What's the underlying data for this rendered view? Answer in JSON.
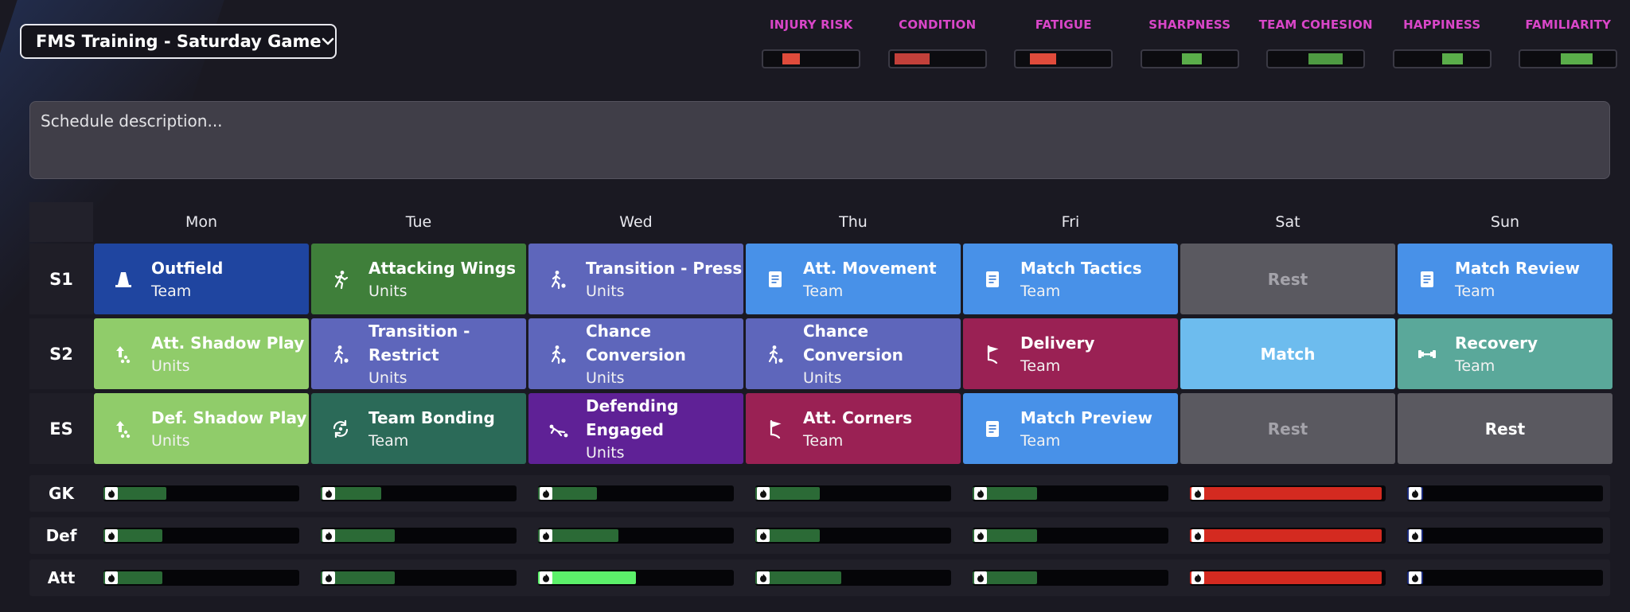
{
  "schedule": {
    "title": "FMS Training - Saturday Game",
    "icon": "chevron-down-icon"
  },
  "metrics": [
    {
      "label": "INJURY RISK",
      "color": "#e04b3b",
      "start": 0.2,
      "end": 0.38
    },
    {
      "label": "CONDITION",
      "color": "#c2403a",
      "start": 0.05,
      "end": 0.42
    },
    {
      "label": "FATIGUE",
      "color": "#e04b3b",
      "start": 0.15,
      "end": 0.42
    },
    {
      "label": "SHARPNESS",
      "color": "#5aad4a",
      "start": 0.42,
      "end": 0.63
    },
    {
      "label": "TEAM COHESION",
      "color": "#4e9a42",
      "start": 0.42,
      "end": 0.78
    },
    {
      "label": "HAPPINESS",
      "color": "#5aad4a",
      "start": 0.5,
      "end": 0.72
    },
    {
      "label": "FAMILIARITY",
      "color": "#5aad4a",
      "start": 0.42,
      "end": 0.76
    }
  ],
  "description": {
    "placeholder": "Schedule description..."
  },
  "days": [
    "Mon",
    "Tue",
    "Wed",
    "Thu",
    "Fri",
    "Sat",
    "Sun"
  ],
  "session_rows": [
    "S1",
    "S2",
    "ES"
  ],
  "sessions": [
    [
      {
        "name": "Outfield",
        "sub": "Team",
        "icon": "cone-icon",
        "color": "#1f45a0"
      },
      {
        "name": "Attacking Wings",
        "sub": "Units",
        "icon": "running-player-icon",
        "color": "#3f7f3a"
      },
      {
        "name": "Transition - Press",
        "sub": "Units",
        "icon": "player-ball-icon",
        "color": "#5e66bb"
      },
      {
        "name": "Att. Movement",
        "sub": "Team",
        "icon": "clipboard-icon",
        "color": "#4891e8"
      },
      {
        "name": "Match Tactics",
        "sub": "Team",
        "icon": "clipboard-icon",
        "color": "#4891e8"
      },
      {
        "name": "Rest",
        "sub": "",
        "icon": "",
        "color": "#5a5960",
        "dim": true
      },
      {
        "name": "Match Review",
        "sub": "Team",
        "icon": "clipboard-icon",
        "color": "#4891e8"
      }
    ],
    [
      {
        "name": "Att. Shadow Play",
        "sub": "Units",
        "icon": "arrow-up-dots-icon",
        "color": "#90cc6a"
      },
      {
        "name": "Transition - Restrict",
        "sub": "Units",
        "icon": "player-ball-icon",
        "color": "#5e66bb"
      },
      {
        "name": "Chance Conversion",
        "sub": "Units",
        "icon": "player-ball-icon",
        "color": "#5e66bb"
      },
      {
        "name": "Chance Conversion",
        "sub": "Units",
        "icon": "player-ball-icon",
        "color": "#5e66bb"
      },
      {
        "name": "Delivery",
        "sub": "Team",
        "icon": "corner-flag-icon",
        "color": "#9a2154"
      },
      {
        "name": "Match",
        "sub": "",
        "icon": "",
        "color": "#6dbcee"
      },
      {
        "name": "Recovery",
        "sub": "Team",
        "icon": "dumbbell-icon",
        "color": "#5aa89a"
      }
    ],
    [
      {
        "name": "Def. Shadow Play",
        "sub": "Units",
        "icon": "arrow-up-dots-icon",
        "color": "#90cc6a"
      },
      {
        "name": "Team Bonding",
        "sub": "Team",
        "icon": "rotate-people-icon",
        "color": "#2b6a58"
      },
      {
        "name": "Defending Engaged",
        "sub": "Units",
        "icon": "slide-tackle-icon",
        "color": "#5f2196"
      },
      {
        "name": "Att. Corners",
        "sub": "Team",
        "icon": "corner-flag-icon",
        "color": "#9a2154"
      },
      {
        "name": "Match Preview",
        "sub": "Team",
        "icon": "clipboard-icon",
        "color": "#4891e8"
      },
      {
        "name": "Rest",
        "sub": "",
        "icon": "",
        "color": "#5a5960",
        "dim": true
      },
      {
        "name": "Rest",
        "sub": "",
        "icon": "",
        "color": "#5a5960"
      }
    ]
  ],
  "load_rows": [
    {
      "label": "GK",
      "bars": [
        {
          "level": 0.32,
          "color": "#2b6a36"
        },
        {
          "level": 0.31,
          "color": "#2b6a36"
        },
        {
          "level": 0.3,
          "color": "#2b6a36"
        },
        {
          "level": 0.33,
          "color": "#2b6a36"
        },
        {
          "level": 0.33,
          "color": "#2b6a36"
        },
        {
          "level": 0.98,
          "color": "#d42a20"
        },
        {
          "level": 0.08,
          "color": "#1a2a7a"
        }
      ]
    },
    {
      "label": "Def",
      "bars": [
        {
          "level": 0.3,
          "color": "#2b6a36"
        },
        {
          "level": 0.38,
          "color": "#2b6a36"
        },
        {
          "level": 0.41,
          "color": "#2b6a36"
        },
        {
          "level": 0.33,
          "color": "#2b6a36"
        },
        {
          "level": 0.33,
          "color": "#2b6a36"
        },
        {
          "level": 0.98,
          "color": "#d42a20"
        },
        {
          "level": 0.08,
          "color": "#1a2a7a"
        }
      ]
    },
    {
      "label": "Att",
      "bars": [
        {
          "level": 0.3,
          "color": "#2b6a36"
        },
        {
          "level": 0.38,
          "color": "#2b6a36"
        },
        {
          "level": 0.5,
          "color": "#5cf06a"
        },
        {
          "level": 0.44,
          "color": "#2b6a36"
        },
        {
          "level": 0.33,
          "color": "#2b6a36"
        },
        {
          "level": 0.98,
          "color": "#d42a20"
        },
        {
          "level": 0.08,
          "color": "#1a2a7a"
        }
      ]
    }
  ]
}
